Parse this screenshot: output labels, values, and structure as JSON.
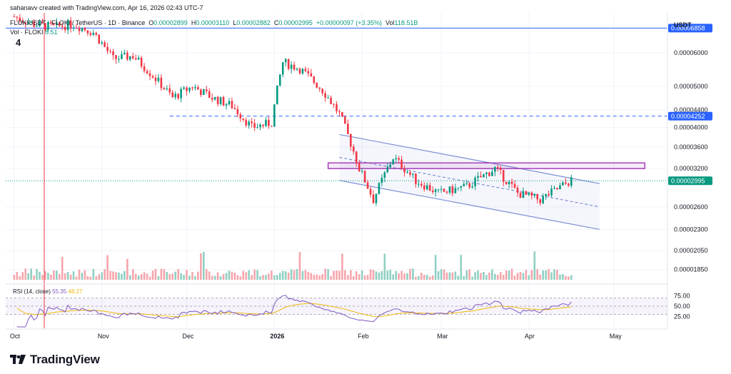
{
  "header": {
    "credit": "sahanavv created with TradingView.com, Apr 16, 2026 02:43 UTC-7",
    "symbol_line": "FLOKIUSDT · FLOKI / TetherUS · 1D · Binance",
    "o_label": "O",
    "o_value": "0.00002899",
    "h_label": "H",
    "h_value": "0.00003110",
    "l_label": "L",
    "l_value": "0.00002882",
    "c_label": "C",
    "c_value": "0.00002995",
    "change": "+0.00000097 (+3.35%)",
    "vol_label": "Vol",
    "vol_value": "118.51B",
    "vol_line": "Vol · FLOKI",
    "vol_value_short": "8.51",
    "note_number": "4"
  },
  "price_axis": {
    "currency": "USDT",
    "ticks": [
      "0.00006000",
      "0.00005000",
      "0.00004400",
      "0.00004000",
      "0.00003600",
      "0.00003200",
      "0.00002600",
      "0.00002300",
      "0.00002050",
      "0.00001850"
    ],
    "level_labels": [
      {
        "text": "0.00006858",
        "color": "#2962ff"
      },
      {
        "text": "0.00004252",
        "color": "#2962ff"
      },
      {
        "text": "0.00002995",
        "color": "#089981"
      }
    ]
  },
  "rsi": {
    "label": "RSI (14, close)",
    "value_a": "55.35",
    "value_b": "48.27",
    "ticks": [
      "75.00",
      "50.00",
      "25.00"
    ],
    "range": [
      0,
      100
    ]
  },
  "time_axis": [
    "Oct",
    "Nov",
    "Dec",
    "2026",
    "Feb",
    "Mar",
    "Apr",
    "May"
  ],
  "brand": {
    "name": "TradingView"
  },
  "colors": {
    "up": "#089981",
    "down": "#f23645",
    "channel": "#7b8fd4",
    "box": "#9c27b0",
    "level": "#2962ff",
    "rsi": "#7e57c2",
    "rsi_ma": "#f0b90b"
  },
  "chart_data": {
    "type": "candlestick",
    "symbol": "FLOKIUSDT",
    "interval": "1D",
    "ylim": [
      1.75e-05,
      7.45e-05
    ],
    "price_points": [
      [
        "2025-10-01",
        7.3e-05
      ],
      [
        "2025-10-08",
        7e-05
      ],
      [
        "2025-10-15",
        6.9e-05
      ],
      [
        "2025-10-22",
        7e-05
      ],
      [
        "2025-10-29",
        6.7e-05
      ],
      [
        "2025-11-05",
        5.8e-05
      ],
      [
        "2025-11-12",
        5.9e-05
      ],
      [
        "2025-11-19",
        5.3e-05
      ],
      [
        "2025-11-26",
        4.7e-05
      ],
      [
        "2025-12-03",
        5e-05
      ],
      [
        "2025-12-10",
        4.7e-05
      ],
      [
        "2025-12-17",
        4.5e-05
      ],
      [
        "2025-12-24",
        4e-05
      ],
      [
        "2025-12-31",
        4.1e-05
      ],
      [
        "2026-01-04",
        5.7e-05
      ],
      [
        "2026-01-10",
        5.5e-05
      ],
      [
        "2026-01-18",
        4.9e-05
      ],
      [
        "2026-01-24",
        4.3e-05
      ],
      [
        "2026-01-31",
        3.2e-05
      ],
      [
        "2026-02-05",
        2.7e-05
      ],
      [
        "2026-02-12",
        3.4e-05
      ],
      [
        "2026-02-20",
        3e-05
      ],
      [
        "2026-02-28",
        2.8e-05
      ],
      [
        "2026-03-10",
        2.9e-05
      ],
      [
        "2026-03-20",
        3.2e-05
      ],
      [
        "2026-03-28",
        2.8e-05
      ],
      [
        "2026-04-05",
        2.7e-05
      ],
      [
        "2026-04-16",
        3e-05
      ]
    ],
    "levels": [
      6.858e-05,
      4.252e-05,
      2.995e-05
    ],
    "supply_box": [
      3.2e-05,
      3.3e-05
    ]
  }
}
